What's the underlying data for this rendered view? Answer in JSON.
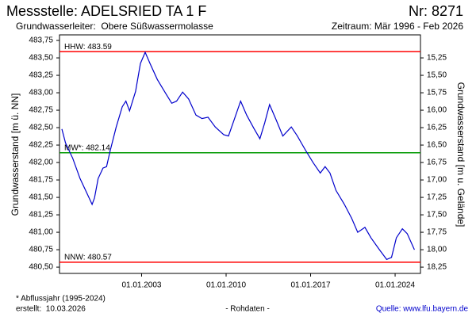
{
  "chart_data": {
    "type": "line",
    "title": "Messstelle: ADELSRIED TA 1 F",
    "number": "Nr: 8271",
    "aquifer": "Grundwasserleiter:  Obere Süßwassermolasse",
    "period": "Zeitraum: Mär 1996 - Feb 2026",
    "y_label": "Grundwasserstand [m ü. NN]",
    "y2_label": "Grundwasserstand [m u. Gelände]",
    "footnote": "* Abflussjahr (1995-2024)",
    "created": "erstellt:  10.03.2026",
    "data_note": "- Rohdaten -",
    "source": "Quelle: www.lfu.bayern.de",
    "color": "#0000cc",
    "x": [
      1996.4,
      1996.7,
      1997.3,
      1997.9,
      1998.5,
      1998.9,
      1999.1,
      1999.4,
      1999.8,
      2000.1,
      2000.4,
      2000.9,
      2001.4,
      2001.7,
      2002.0,
      2002.5,
      2002.9,
      2003.3,
      2003.7,
      2004.3,
      2005.0,
      2005.5,
      2005.9,
      2006.4,
      2006.9,
      2007.5,
      2008.0,
      2008.5,
      2009.1,
      2009.8,
      2010.2,
      2010.7,
      2011.2,
      2011.7,
      2012.3,
      2012.8,
      2013.2,
      2013.6,
      2014.1,
      2014.7,
      2015.4,
      2015.9,
      2016.6,
      2017.2,
      2017.8,
      2018.2,
      2018.6,
      2019.1,
      2019.8,
      2020.4,
      2020.9,
      2021.5,
      2022.0,
      2022.7,
      2023.3,
      2023.7,
      2024.1,
      2024.6,
      2025.0,
      2025.6
    ],
    "values": [
      482.48,
      482.28,
      482.06,
      481.77,
      481.55,
      481.4,
      481.49,
      481.77,
      481.92,
      481.94,
      482.17,
      482.51,
      482.8,
      482.88,
      482.74,
      483.02,
      483.42,
      483.58,
      483.42,
      483.19,
      482.99,
      482.85,
      482.88,
      483.01,
      482.91,
      482.68,
      482.63,
      482.65,
      482.51,
      482.4,
      482.38,
      482.63,
      482.88,
      482.68,
      482.49,
      482.34,
      482.57,
      482.83,
      482.63,
      482.38,
      482.51,
      482.38,
      482.17,
      482.0,
      481.85,
      481.94,
      481.85,
      481.6,
      481.4,
      481.2,
      481.0,
      481.07,
      480.92,
      480.75,
      480.61,
      480.64,
      480.92,
      481.05,
      480.98,
      480.75
    ],
    "reference_lines": [
      {
        "label": "HHW: 483.59",
        "value": 483.59,
        "color": "#ff0000"
      },
      {
        "label": "MW*: 482.14",
        "value": 482.14,
        "color": "#009900"
      },
      {
        "label": "NNW: 480.57",
        "value": 480.57,
        "color": "#ff0000"
      }
    ],
    "xlim": [
      1996.2,
      2026.1
    ],
    "xticks": [
      {
        "value": 2003,
        "label": "01.01.2003"
      },
      {
        "value": 2010,
        "label": "01.01.2010"
      },
      {
        "value": 2017,
        "label": "01.01.2017"
      },
      {
        "value": 2024,
        "label": "01.01.2024"
      }
    ],
    "ylim": [
      480.41,
      483.83
    ],
    "yticks": [
      {
        "value": 480.5,
        "label": "480,50"
      },
      {
        "value": 480.75,
        "label": "480,75"
      },
      {
        "value": 481,
        "label": "481,00"
      },
      {
        "value": 481.25,
        "label": "481,25"
      },
      {
        "value": 481.5,
        "label": "481,50"
      },
      {
        "value": 481.75,
        "label": "481,75"
      },
      {
        "value": 482,
        "label": "482,00"
      },
      {
        "value": 482.25,
        "label": "482,25"
      },
      {
        "value": 482.5,
        "label": "482,50"
      },
      {
        "value": 482.75,
        "label": "482,75"
      },
      {
        "value": 483,
        "label": "483,00"
      },
      {
        "value": 483.25,
        "label": "483,25"
      },
      {
        "value": 483.5,
        "label": "483,50"
      },
      {
        "value": 483.75,
        "label": "483,75"
      }
    ],
    "y2lim": [
      14.92,
      18.34
    ],
    "y2_inverted": true,
    "y2ticks": [
      {
        "value": 15.25,
        "label": "15,25"
      },
      {
        "value": 15.5,
        "label": "15,50"
      },
      {
        "value": 15.75,
        "label": "15,75"
      },
      {
        "value": 16,
        "label": "16,00"
      },
      {
        "value": 16.25,
        "label": "16,25"
      },
      {
        "value": 16.5,
        "label": "16,50"
      },
      {
        "value": 16.75,
        "label": "16,75"
      },
      {
        "value": 17,
        "label": "17,00"
      },
      {
        "value": 17.25,
        "label": "17,25"
      },
      {
        "value": 17.5,
        "label": "17,50"
      },
      {
        "value": 17.75,
        "label": "17,75"
      },
      {
        "value": 18,
        "label": "18,00"
      },
      {
        "value": 18.25,
        "label": "18,25"
      }
    ]
  }
}
